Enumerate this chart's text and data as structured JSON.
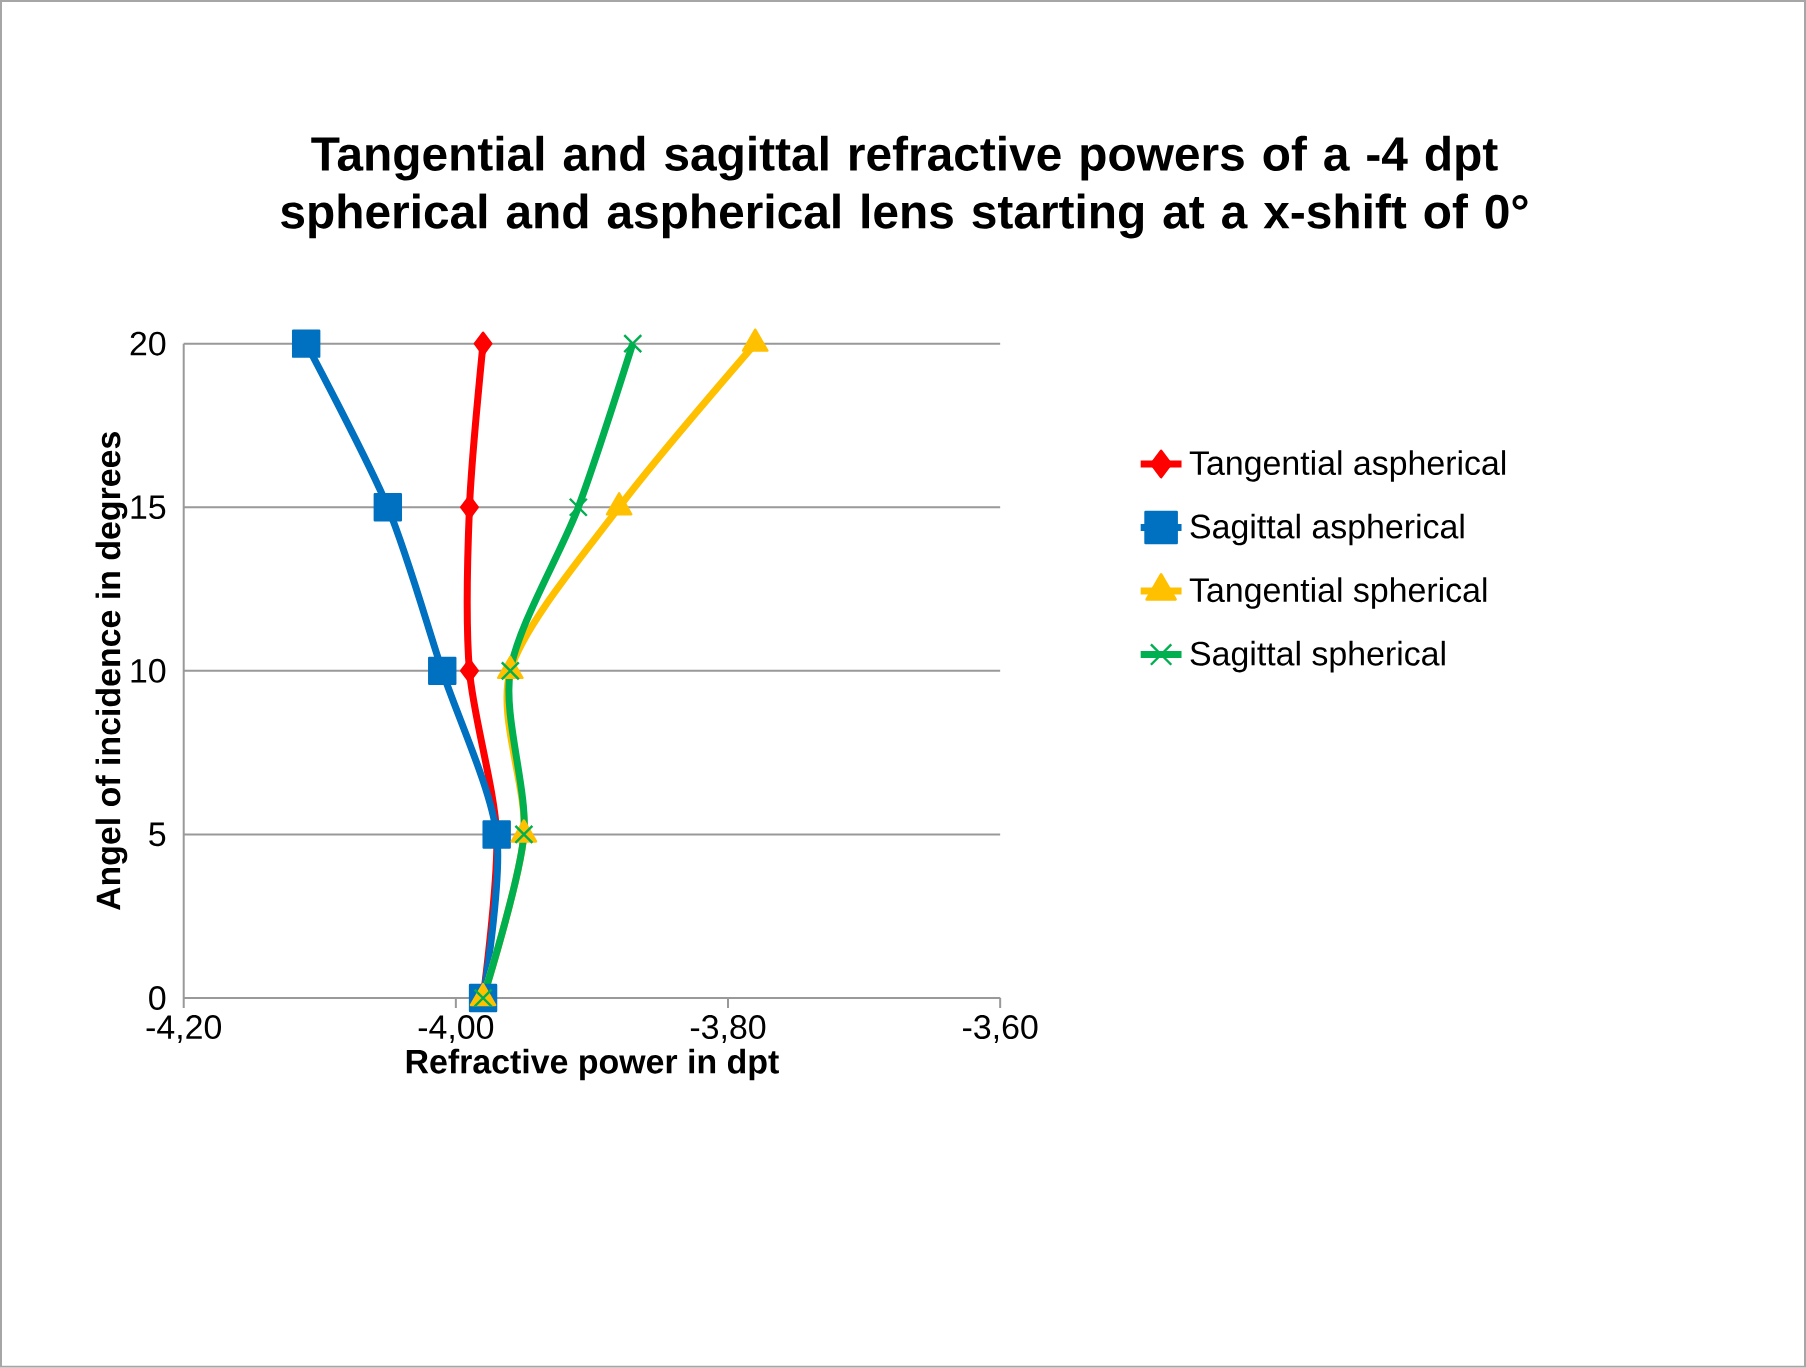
{
  "chart_data": {
    "type": "line",
    "title": "Tangential and sagittal refractive powers of a -4 dpt spherical and aspherical lens starting at a x-shift of 0°",
    "xlabel": "Refractive power in dpt",
    "ylabel": "Angel of incidence in degrees",
    "series": [
      {
        "name": "Tangential aspherical",
        "color": "#ff0000",
        "marker": "diamond",
        "x": [
          -3.98,
          -3.97,
          -3.99,
          -3.99,
          -3.98
        ],
        "values": [
          0,
          5,
          10,
          15,
          20
        ]
      },
      {
        "name": "Sagittal aspherical",
        "color": "#0070c0",
        "marker": "square",
        "x": [
          -3.98,
          -3.97,
          -4.01,
          -4.05,
          -4.11
        ],
        "values": [
          0,
          5,
          10,
          15,
          20
        ]
      },
      {
        "name": "Tangential spherical",
        "color": "#ffc000",
        "marker": "triangle",
        "x": [
          -3.98,
          -3.95,
          -3.96,
          -3.88,
          -3.78
        ],
        "values": [
          0,
          5,
          10,
          15,
          20
        ]
      },
      {
        "name": "Sagittal spherical",
        "color": "#00b050",
        "marker": "cross",
        "x": [
          -3.98,
          -3.95,
          -3.96,
          -3.91,
          -3.87
        ],
        "values": [
          0,
          5,
          10,
          15,
          20
        ]
      }
    ],
    "xlim": [
      -4.2,
      -3.6
    ],
    "xticks": [
      {
        "value": -4.2,
        "label": "-4,20"
      },
      {
        "value": -4.0,
        "label": "-4,00"
      },
      {
        "value": -3.8,
        "label": "-3,80"
      },
      {
        "value": -3.6,
        "label": "-3,60"
      }
    ],
    "ylim": [
      0,
      20
    ],
    "yticks": [
      0,
      5,
      10,
      15,
      20
    ],
    "grid": "y",
    "legend": "right"
  }
}
